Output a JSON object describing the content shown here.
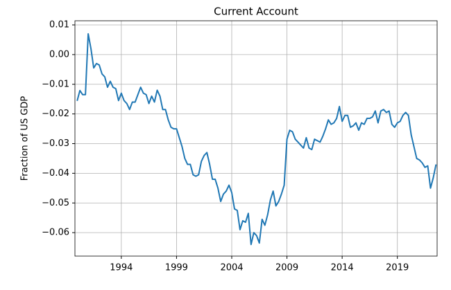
{
  "chart_data": {
    "type": "line",
    "title": "Current Account",
    "ylabel": "Fraction of US GDP",
    "x": [
      1990.0,
      1990.25,
      1990.5,
      1990.75,
      1991.0,
      1991.25,
      1991.5,
      1991.75,
      1992.0,
      1992.25,
      1992.5,
      1992.75,
      1993.0,
      1993.25,
      1993.5,
      1993.75,
      1994.0,
      1994.25,
      1994.5,
      1994.75,
      1995.0,
      1995.25,
      1995.5,
      1995.75,
      1996.0,
      1996.25,
      1996.5,
      1996.75,
      1997.0,
      1997.25,
      1997.5,
      1997.75,
      1998.0,
      1998.25,
      1998.5,
      1998.75,
      1999.0,
      1999.25,
      1999.5,
      1999.75,
      2000.0,
      2000.25,
      2000.5,
      2000.75,
      2001.0,
      2001.25,
      2001.5,
      2001.75,
      2002.0,
      2002.25,
      2002.5,
      2002.75,
      2003.0,
      2003.25,
      2003.5,
      2003.75,
      2004.0,
      2004.25,
      2004.5,
      2004.75,
      2005.0,
      2005.25,
      2005.5,
      2005.75,
      2006.0,
      2006.25,
      2006.5,
      2006.75,
      2007.0,
      2007.25,
      2007.5,
      2007.75,
      2008.0,
      2008.25,
      2008.5,
      2008.75,
      2009.0,
      2009.25,
      2009.5,
      2009.75,
      2010.0,
      2010.25,
      2010.5,
      2010.75,
      2011.0,
      2011.25,
      2011.5,
      2011.75,
      2012.0,
      2012.25,
      2012.5,
      2012.75,
      2013.0,
      2013.25,
      2013.5,
      2013.75,
      2014.0,
      2014.25,
      2014.5,
      2014.75,
      2015.0,
      2015.25,
      2015.5,
      2015.75,
      2016.0,
      2016.25,
      2016.5,
      2016.75,
      2017.0,
      2017.25,
      2017.5,
      2017.75,
      2018.0,
      2018.25,
      2018.5,
      2018.75,
      2019.0,
      2019.25,
      2019.5,
      2019.75,
      2020.0,
      2020.25,
      2020.5,
      2020.75,
      2021.0,
      2021.25,
      2021.5,
      2021.75,
      2022.0,
      2022.25,
      2022.5
    ],
    "series": [
      {
        "name": "Current Account",
        "color": "#1f77b4",
        "values": [
          -0.0156,
          -0.0121,
          -0.0135,
          -0.0135,
          0.007,
          0.002,
          -0.0045,
          -0.003,
          -0.0035,
          -0.0065,
          -0.0075,
          -0.011,
          -0.009,
          -0.011,
          -0.0115,
          -0.0155,
          -0.013,
          -0.0155,
          -0.0165,
          -0.0185,
          -0.016,
          -0.016,
          -0.0135,
          -0.011,
          -0.013,
          -0.0135,
          -0.0165,
          -0.014,
          -0.016,
          -0.012,
          -0.014,
          -0.0185,
          -0.0185,
          -0.022,
          -0.0245,
          -0.025,
          -0.025,
          -0.028,
          -0.031,
          -0.035,
          -0.037,
          -0.037,
          -0.0405,
          -0.041,
          -0.0405,
          -0.036,
          -0.034,
          -0.033,
          -0.037,
          -0.042,
          -0.042,
          -0.045,
          -0.0495,
          -0.047,
          -0.046,
          -0.044,
          -0.0465,
          -0.052,
          -0.0525,
          -0.059,
          -0.056,
          -0.0565,
          -0.0535,
          -0.064,
          -0.06,
          -0.061,
          -0.0635,
          -0.0555,
          -0.0575,
          -0.054,
          -0.049,
          -0.046,
          -0.051,
          -0.0495,
          -0.047,
          -0.044,
          -0.0285,
          -0.0255,
          -0.026,
          -0.0285,
          -0.0295,
          -0.0305,
          -0.0315,
          -0.028,
          -0.0315,
          -0.032,
          -0.0285,
          -0.029,
          -0.0295,
          -0.0275,
          -0.025,
          -0.022,
          -0.0235,
          -0.023,
          -0.0215,
          -0.0175,
          -0.0225,
          -0.0205,
          -0.0205,
          -0.0245,
          -0.024,
          -0.023,
          -0.0255,
          -0.023,
          -0.0235,
          -0.0215,
          -0.0215,
          -0.021,
          -0.019,
          -0.023,
          -0.019,
          -0.0185,
          -0.0195,
          -0.019,
          -0.0235,
          -0.0245,
          -0.023,
          -0.0225,
          -0.0205,
          -0.0195,
          -0.0205,
          -0.027,
          -0.031,
          -0.035,
          -0.0355,
          -0.0365,
          -0.038,
          -0.0375,
          -0.045,
          -0.0415,
          -0.037
        ]
      }
    ],
    "xlim": [
      1989.8,
      2022.6
    ],
    "xticks": [
      1994,
      1999,
      2004,
      2009,
      2014,
      2019
    ],
    "ylim": [
      -0.0679,
      0.0114
    ],
    "yticks": [
      {
        "value": -0.06,
        "label": "−0.06"
      },
      {
        "value": -0.05,
        "label": "−0.05"
      },
      {
        "value": -0.04,
        "label": "−0.04"
      },
      {
        "value": -0.03,
        "label": "−0.03"
      },
      {
        "value": -0.02,
        "label": "−0.02"
      },
      {
        "value": -0.01,
        "label": "−0.01"
      },
      {
        "value": 0,
        "label": "0.00"
      },
      {
        "value": 0.01,
        "label": "0.01"
      }
    ],
    "grid": true
  }
}
